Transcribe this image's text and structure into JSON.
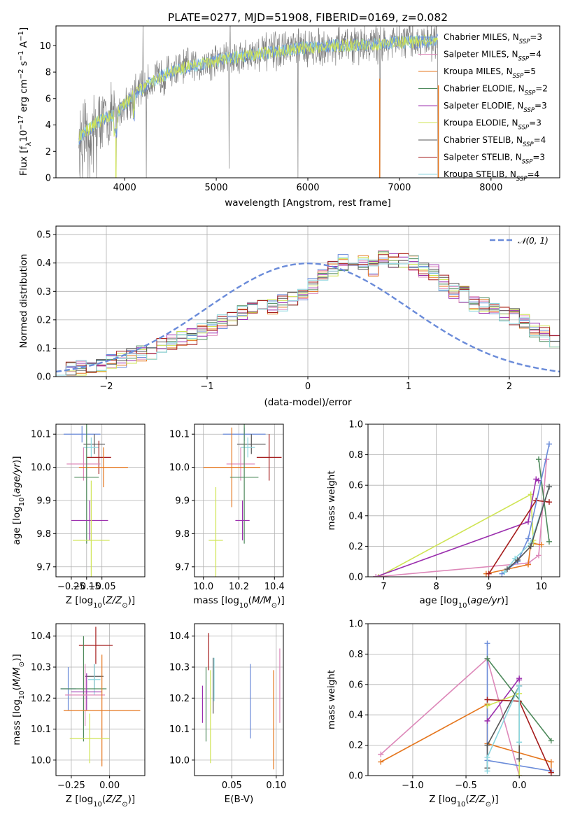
{
  "figure": {
    "title": "PLATE=0277, MJD=51908, FIBERID=0169, z=0.082"
  },
  "colors": {
    "spectrum": "#808080",
    "Chabrier MILES": "#6a8bd9",
    "Salpeter MILES": "#dd88b9",
    "Kroupa MILES": "#e5771f",
    "Chabrier ELODIE": "#4e8a5c",
    "Salpeter ELODIE": "#9b2fae",
    "Kroupa ELODIE": "#cfe453",
    "Chabrier STELIB": "#555555",
    "Salpeter STELIB": "#a51c1c",
    "Kroupa STELIB": "#8bd6df",
    "normal": "#6a8bd9"
  },
  "chart_data": [
    {
      "id": "spectrum",
      "type": "line",
      "title": "PLATE=0277, MJD=51908, FIBERID=0169, z=0.082",
      "xlabel": "wavelength [Angstrom, rest frame]",
      "ylabel": "Flux [f_λ 10^-17 erg cm^-2 s^-1 A^-1]",
      "xlim": [
        3250,
        8750
      ],
      "ylim": [
        0,
        11.5
      ],
      "xticks": [
        "4000",
        "5000",
        "6000",
        "7000",
        "8000"
      ],
      "yticks": [
        "0",
        "2",
        "4",
        "6",
        "8",
        "10"
      ],
      "continuum": {
        "x": [
          3500,
          3600,
          3700,
          3800,
          3900,
          3950,
          4000,
          4100,
          4200,
          4300,
          4400,
          4500,
          4700,
          4900,
          5100,
          5300,
          5500,
          5700,
          5900,
          6100,
          6300,
          6500,
          6700,
          6900,
          7100,
          7200,
          7300,
          7400
        ],
        "y": [
          3.0,
          3.6,
          4.2,
          4.6,
          4.8,
          5.2,
          5.6,
          6.2,
          6.8,
          7.3,
          7.7,
          8.0,
          8.4,
          8.7,
          9.0,
          9.2,
          9.4,
          9.6,
          9.8,
          9.9,
          10.0,
          10.05,
          10.1,
          10.2,
          10.3,
          10.3,
          10.35,
          10.4
        ]
      },
      "legend": [
        {
          "label": "Chabrier MILES, N",
          "n": "3"
        },
        {
          "label": "Salpeter MILES, N",
          "n": "4"
        },
        {
          "label": "Kroupa MILES, N",
          "n": "5"
        },
        {
          "label": "Chabrier ELODIE, N",
          "n": "2"
        },
        {
          "label": "Salpeter ELODIE, N",
          "n": "3"
        },
        {
          "label": "Kroupa ELODIE, N",
          "n": "3"
        },
        {
          "label": "Chabrier STELIB, N",
          "n": "4"
        },
        {
          "label": "Salpeter STELIB, N",
          "n": "3"
        },
        {
          "label": "Kroupa STELIB, N",
          "n": "4"
        }
      ],
      "legend_sub": "SSP",
      "legend_placement": "right"
    },
    {
      "id": "residuals",
      "type": "histogram",
      "xlabel": "(data-model)/error",
      "ylabel": "Normed distribution",
      "xlim": [
        -2.5,
        2.5
      ],
      "ylim": [
        0,
        0.53
      ],
      "xticks": [
        "−2",
        "−1",
        "0",
        "1",
        "2"
      ],
      "yticks": [
        "0.0",
        "0.1",
        "0.2",
        "0.3",
        "0.4",
        "0.5"
      ],
      "grid": true,
      "bin_width": 0.1,
      "bins_from": -2.5,
      "reference_curve": "N(0,1)",
      "legend": "𝒩(0, 1)",
      "legend_placement": "top-right",
      "values": [
        0.03,
        0.03,
        0.03,
        0.04,
        0.04,
        0.05,
        0.06,
        0.07,
        0.08,
        0.09,
        0.11,
        0.12,
        0.13,
        0.14,
        0.16,
        0.17,
        0.19,
        0.2,
        0.22,
        0.24,
        0.24,
        0.25,
        0.26,
        0.27,
        0.29,
        0.32,
        0.35,
        0.38,
        0.4,
        0.41,
        0.4,
        0.38,
        0.42,
        0.41,
        0.41,
        0.4,
        0.38,
        0.37,
        0.33,
        0.3,
        0.29,
        0.26,
        0.25,
        0.23,
        0.22,
        0.21,
        0.19,
        0.16,
        0.15,
        0.13,
        0.11,
        0.1,
        0.09,
        0.08,
        0.07,
        0.06,
        0.05,
        0.05,
        0.04,
        0.04
      ]
    },
    {
      "id": "age_vs_Z",
      "type": "errorbar",
      "xlabel": "Z [log10(Z/Z⊙)]",
      "ylabel": "age  [log10(age/yr)]",
      "xlim": [
        -0.35,
        0.23
      ],
      "ylim": [
        9.67,
        10.13
      ],
      "xticks": [
        "−0.25",
        "−0.15",
        "−0.05"
      ],
      "xtick_values": [
        -0.25,
        -0.15,
        -0.05
      ],
      "yticks": [
        "9.7",
        "9.8",
        "9.9",
        "10.0",
        "10.1"
      ],
      "ytick_values": [
        9.7,
        9.8,
        9.9,
        10.0,
        10.1
      ],
      "points": [
        {
          "model": "Chabrier MILES",
          "x": -0.18,
          "xerr": 0.12,
          "y": 10.1,
          "yerr": 0.025
        },
        {
          "model": "Chabrier STELIB",
          "x": -0.1,
          "xerr": 0.07,
          "y": 10.07,
          "yerr": 0.03
        },
        {
          "model": "Kroupa STELIB",
          "x": -0.12,
          "xerr": 0.05,
          "y": 10.06,
          "yerr": 0.03
        },
        {
          "model": "Salpeter STELIB",
          "x": -0.07,
          "xerr": 0.08,
          "y": 10.03,
          "yerr": 0.05
        },
        {
          "model": "Salpeter MILES",
          "x": -0.17,
          "xerr": 0.11,
          "y": 10.01,
          "yerr": 0.05
        },
        {
          "model": "Kroupa MILES",
          "x": -0.04,
          "xerr": 0.16,
          "y": 10.0,
          "yerr": 0.06
        },
        {
          "model": "Chabrier ELODIE",
          "x": -0.15,
          "xerr": 0.08,
          "y": 9.97,
          "yerr": 0.2
        },
        {
          "model": "Salpeter ELODIE",
          "x": -0.13,
          "xerr": 0.12,
          "y": 9.84,
          "yerr": 0.06
        },
        {
          "model": "Kroupa ELODIE",
          "x": -0.12,
          "xerr": 0.12,
          "y": 9.78,
          "yerr": 0.18
        }
      ]
    },
    {
      "id": "age_vs_mass",
      "type": "errorbar",
      "xlabel": "mass [log10(M/M⊙)]",
      "ylabel": "",
      "xlim": [
        9.95,
        10.45
      ],
      "ylim": [
        9.67,
        10.13
      ],
      "xticks": [
        "10.0",
        "10.2",
        "10.4"
      ],
      "xtick_values": [
        10.0,
        10.2,
        10.4
      ],
      "yticks": [
        "9.7",
        "9.8",
        "9.9",
        "10.0",
        "10.1"
      ],
      "ytick_values": [
        9.7,
        9.8,
        9.9,
        10.0,
        10.1
      ],
      "points": [
        {
          "model": "Chabrier MILES",
          "x": 10.23,
          "xerr": 0.12,
          "y": 10.1,
          "yerr": 0.02
        },
        {
          "model": "Chabrier STELIB",
          "x": 10.27,
          "xerr": 0.08,
          "y": 10.07,
          "yerr": 0.03
        },
        {
          "model": "Kroupa STELIB",
          "x": 10.25,
          "xerr": 0.04,
          "y": 10.06,
          "yerr": 0.03
        },
        {
          "model": "Salpeter STELIB",
          "x": 10.37,
          "xerr": 0.07,
          "y": 10.03,
          "yerr": 0.07
        },
        {
          "model": "Salpeter MILES",
          "x": 10.21,
          "xerr": 0.08,
          "y": 10.01,
          "yerr": 0.05
        },
        {
          "model": "Kroupa MILES",
          "x": 10.16,
          "xerr": 0.16,
          "y": 10.0,
          "yerr": 0.12
        },
        {
          "model": "Chabrier ELODIE",
          "x": 10.23,
          "xerr": 0.08,
          "y": 9.97,
          "yerr": 0.2
        },
        {
          "model": "Salpeter ELODIE",
          "x": 10.22,
          "xerr": 0.04,
          "y": 9.84,
          "yerr": 0.06
        },
        {
          "model": "Kroupa ELODIE",
          "x": 10.07,
          "xerr": 0.04,
          "y": 9.78,
          "yerr": 0.16
        }
      ]
    },
    {
      "id": "weight_vs_age",
      "type": "line",
      "xlabel": "age  [log10(age/yr)]",
      "ylabel": "mass weight",
      "xlim": [
        6.7,
        10.35
      ],
      "ylim": [
        0,
        1
      ],
      "xticks": [
        "7",
        "8",
        "9",
        "10"
      ],
      "xtick_values": [
        7,
        8,
        9,
        10
      ],
      "yticks": [
        "0.0",
        "0.2",
        "0.4",
        "0.6",
        "0.8",
        "1.0"
      ],
      "ytick_values": [
        0,
        0.2,
        0.4,
        0.6,
        0.8,
        1.0
      ],
      "series": [
        {
          "model": "Kroupa ELODIE",
          "x": [
            6.9,
            9.8,
            9.85,
            9.85
          ],
          "y": [
            0.0,
            0.54,
            0.22,
            0.24
          ]
        },
        {
          "model": "Salpeter ELODIE",
          "x": [
            6.85,
            9.75,
            9.9,
            9.95
          ],
          "y": [
            0.0,
            0.36,
            0.64,
            0.63
          ]
        },
        {
          "model": "Salpeter MILES",
          "x": [
            6.85,
            9.75,
            9.95,
            10.1
          ],
          "y": [
            0.0,
            0.09,
            0.14,
            0.77
          ]
        },
        {
          "model": "Kroupa MILES",
          "x": [
            8.95,
            9.75,
            9.8,
            10.0
          ],
          "y": [
            0.02,
            0.08,
            0.22,
            0.21
          ]
        },
        {
          "model": "Salpeter STELIB",
          "x": [
            9.0,
            9.9,
            10.15
          ],
          "y": [
            0.02,
            0.5,
            0.49
          ]
        },
        {
          "model": "Chabrier ELODIE",
          "x": [
            9.95,
            10.15
          ],
          "y": [
            0.77,
            0.23
          ]
        },
        {
          "model": "Chabrier MILES",
          "x": [
            9.25,
            9.55,
            9.75,
            10.15
          ],
          "y": [
            0.02,
            0.1,
            0.25,
            0.87
          ]
        },
        {
          "model": "Kroupa STELIB",
          "x": [
            9.3,
            9.5,
            9.8,
            10.15
          ],
          "y": [
            0.03,
            0.12,
            0.22,
            0.59
          ]
        },
        {
          "model": "Chabrier STELIB",
          "x": [
            9.35,
            9.55,
            9.8,
            10.15
          ],
          "y": [
            0.05,
            0.11,
            0.2,
            0.59
          ]
        }
      ]
    },
    {
      "id": "mass_vs_Z",
      "type": "errorbar",
      "xlabel": "Z [log10(Z/Z⊙)]",
      "ylabel": "mass [log10(M/M⊙)]",
      "xlim": [
        -0.35,
        0.23
      ],
      "ylim": [
        9.95,
        10.44
      ],
      "xticks": [
        "−0.25",
        "0.00"
      ],
      "xtick_values": [
        -0.25,
        0.0
      ],
      "yticks": [
        "10.0",
        "10.1",
        "10.2",
        "10.3",
        "10.4"
      ],
      "ytick_values": [
        10.0,
        10.1,
        10.2,
        10.3,
        10.4
      ],
      "points": [
        {
          "model": "Salpeter STELIB",
          "x": -0.09,
          "xerr": 0.11,
          "y": 10.37,
          "yerr": 0.06
        },
        {
          "model": "Chabrier STELIB",
          "x": -0.1,
          "xerr": 0.06,
          "y": 10.27,
          "yerr": 0.04
        },
        {
          "model": "Kroupa STELIB",
          "x": -0.1,
          "xerr": 0.04,
          "y": 10.26,
          "yerr": 0.05
        },
        {
          "model": "Chabrier MILES",
          "x": -0.27,
          "xerr": 0.05,
          "y": 10.23,
          "yerr": 0.07
        },
        {
          "model": "Chabrier ELODIE",
          "x": -0.17,
          "xerr": 0.15,
          "y": 10.23,
          "yerr": 0.17
        },
        {
          "model": "Salpeter ELODIE",
          "x": -0.15,
          "xerr": 0.1,
          "y": 10.22,
          "yerr": 0.06
        },
        {
          "model": "Salpeter MILES",
          "x": -0.16,
          "xerr": 0.13,
          "y": 10.21,
          "yerr": 0.1
        },
        {
          "model": "Kroupa MILES",
          "x": -0.05,
          "xerr": 0.25,
          "y": 10.16,
          "yerr": 0.18
        },
        {
          "model": "Kroupa ELODIE",
          "x": -0.13,
          "xerr": 0.13,
          "y": 10.07,
          "yerr": 0.08
        }
      ]
    },
    {
      "id": "mass_vs_ebv",
      "type": "errorbar",
      "xlabel": "E(B-V)",
      "ylabel": "",
      "xlim": [
        0.008,
        0.108
      ],
      "ylim": [
        9.95,
        10.44
      ],
      "xticks": [
        "0.05",
        "0.10"
      ],
      "xtick_values": [
        0.05,
        0.1
      ],
      "yticks": [
        "10.0",
        "10.1",
        "10.2",
        "10.3",
        "10.4"
      ],
      "ytick_values": [
        10.0,
        10.1,
        10.2,
        10.3,
        10.4
      ],
      "points": [
        {
          "model": "Salpeter STELIB",
          "x": 0.024,
          "xerr": 0,
          "y": 10.35,
          "yerr": 0.06
        },
        {
          "model": "Chabrier STELIB",
          "x": 0.029,
          "xerr": 0,
          "y": 10.24,
          "yerr": 0.09
        },
        {
          "model": "Kroupa STELIB",
          "x": 0.03,
          "xerr": 0,
          "y": 10.26,
          "yerr": 0.07
        },
        {
          "model": "Chabrier ELODIE",
          "x": 0.021,
          "xerr": 0,
          "y": 10.18,
          "yerr": 0.12
        },
        {
          "model": "Salpeter ELODIE",
          "x": 0.017,
          "xerr": 0,
          "y": 10.18,
          "yerr": 0.06
        },
        {
          "model": "Kroupa ELODIE",
          "x": 0.026,
          "xerr": 0,
          "y": 10.14,
          "yerr": 0.15
        },
        {
          "model": "Chabrier MILES",
          "x": 0.071,
          "xerr": 0,
          "y": 10.19,
          "yerr": 0.12
        },
        {
          "model": "Kroupa MILES",
          "x": 0.097,
          "xerr": 0,
          "y": 10.13,
          "yerr": 0.16
        },
        {
          "model": "Salpeter MILES",
          "x": 0.104,
          "xerr": 0,
          "y": 10.24,
          "yerr": 0.12
        }
      ]
    },
    {
      "id": "weight_vs_Z",
      "type": "line",
      "xlabel": "Z [log10(Z/Z⊙)]",
      "ylabel": "mass weight",
      "xlim": [
        -1.42,
        0.38
      ],
      "ylim": [
        0,
        1
      ],
      "xticks": [
        "−1.0",
        "−0.5",
        "0.0"
      ],
      "xtick_values": [
        -1.0,
        -0.5,
        0.0
      ],
      "yticks": [
        "0.0",
        "0.2",
        "0.4",
        "0.6",
        "0.8",
        "1.0"
      ],
      "ytick_values": [
        0,
        0.2,
        0.4,
        0.6,
        0.8,
        1.0
      ],
      "series": [
        {
          "model": "Kroupa MILES",
          "x": [
            -1.3,
            -0.3,
            -0.3,
            0.3,
            0.3
          ],
          "y": [
            0.09,
            0.47,
            0.21,
            0.09,
            0.02
          ]
        },
        {
          "model": "Salpeter MILES",
          "x": [
            -1.3,
            -0.3,
            0.0
          ],
          "y": [
            0.14,
            0.77,
            0.0
          ]
        },
        {
          "model": "Chabrier MILES",
          "x": [
            -0.3,
            -0.3,
            0.3
          ],
          "y": [
            0.87,
            0.1,
            0.03
          ]
        },
        {
          "model": "Chabrier ELODIE",
          "x": [
            -0.3,
            0.3
          ],
          "y": [
            0.77,
            0.23
          ]
        },
        {
          "model": "Salpeter ELODIE",
          "x": [
            -0.3,
            0.0,
            0.0
          ],
          "y": [
            0.36,
            0.64,
            0.63
          ]
        },
        {
          "model": "Kroupa ELODIE",
          "x": [
            -0.3,
            0.0,
            0.0
          ],
          "y": [
            0.46,
            0.54,
            0.0
          ]
        },
        {
          "model": "Salpeter STELIB",
          "x": [
            -0.3,
            0.0,
            0.3
          ],
          "y": [
            0.5,
            0.49,
            0.02
          ]
        },
        {
          "model": "Chabrier STELIB",
          "x": [
            -0.3,
            -0.3,
            0.0,
            0.0
          ],
          "y": [
            0.05,
            0.2,
            0.59,
            0.11
          ]
        },
        {
          "model": "Kroupa STELIB",
          "x": [
            -0.3,
            -0.3,
            0.0,
            0.0
          ],
          "y": [
            0.03,
            0.12,
            0.59,
            0.22
          ]
        }
      ]
    }
  ]
}
